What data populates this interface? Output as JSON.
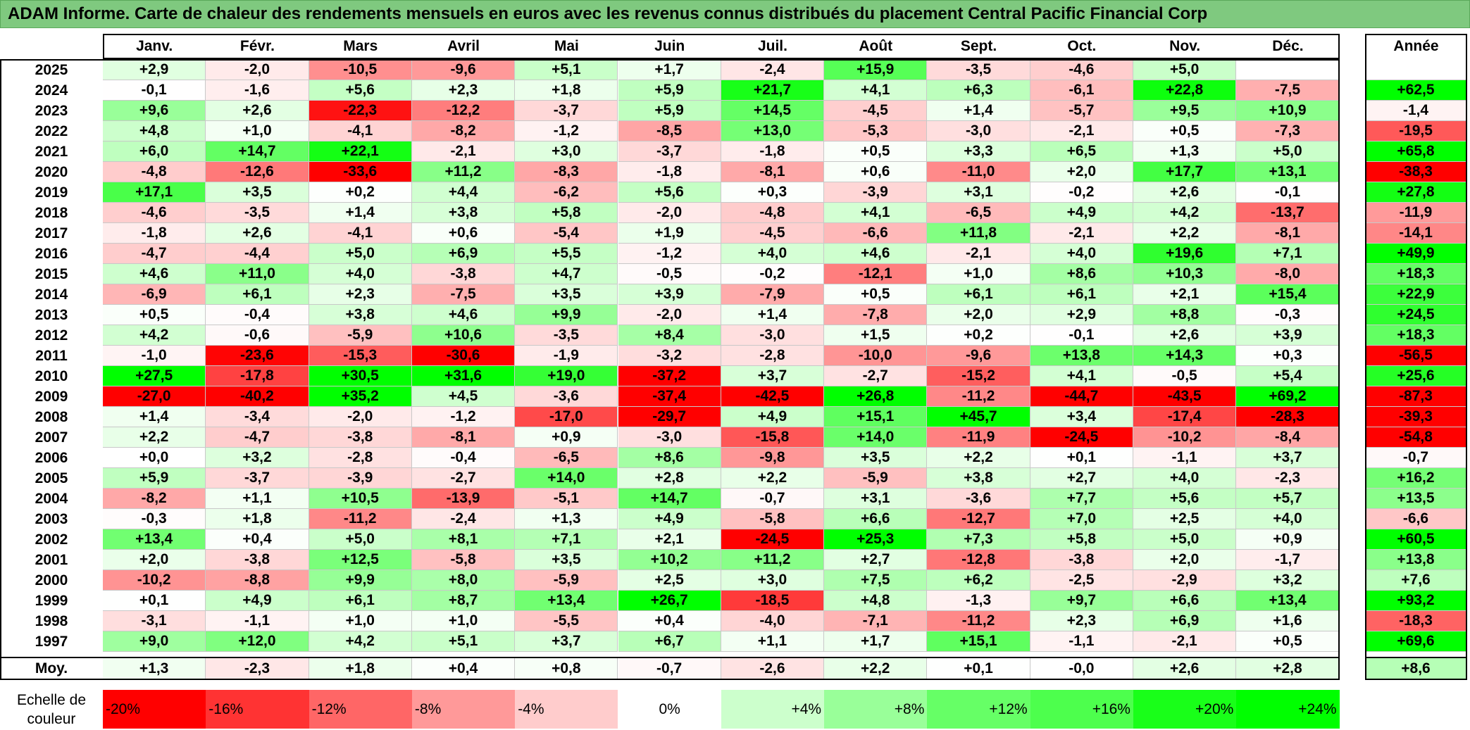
{
  "title": "ADAM Informe. Carte de chaleur des rendements mensuels en euros avec les revenus connus distribués du placement Central Pacific Financial Corp",
  "chart_data": {
    "type": "heatmap",
    "columns": [
      "Janv.",
      "Févr.",
      "Mars",
      "Avril",
      "Mai",
      "Juin",
      "Juil.",
      "Août",
      "Sept.",
      "Oct.",
      "Nov.",
      "Déc."
    ],
    "year_column": "Année",
    "average_label": "Moy.",
    "rows": [
      {
        "year": "2025",
        "values": [
          "+2,9",
          "-2,0",
          "-10,5",
          "-9,6",
          "+5,1",
          "+1,7",
          "-2,4",
          "+15,9",
          "-3,5",
          "-4,6",
          "+5,0",
          ""
        ],
        "annual": ""
      },
      {
        "year": "2024",
        "values": [
          "-0,1",
          "-1,6",
          "+5,6",
          "+2,3",
          "+1,8",
          "+5,9",
          "+21,7",
          "+4,1",
          "+6,3",
          "-6,1",
          "+22,8",
          "-7,5"
        ],
        "annual": "+62,5"
      },
      {
        "year": "2023",
        "values": [
          "+9,6",
          "+2,6",
          "-22,3",
          "-12,2",
          "-3,7",
          "+5,9",
          "+14,5",
          "-4,5",
          "+1,4",
          "-5,7",
          "+9,5",
          "+10,9"
        ],
        "annual": "-1,4"
      },
      {
        "year": "2022",
        "values": [
          "+4,8",
          "+1,0",
          "-4,1",
          "-8,2",
          "-1,2",
          "-8,5",
          "+13,0",
          "-5,3",
          "-3,0",
          "-2,1",
          "+0,5",
          "-7,3"
        ],
        "annual": "-19,5"
      },
      {
        "year": "2021",
        "values": [
          "+6,0",
          "+14,7",
          "+22,1",
          "-2,1",
          "+3,0",
          "-3,7",
          "-1,8",
          "+0,5",
          "+3,3",
          "+6,5",
          "+1,3",
          "+5,0"
        ],
        "annual": "+65,8"
      },
      {
        "year": "2020",
        "values": [
          "-4,8",
          "-12,6",
          "-33,6",
          "+11,2",
          "-8,3",
          "-1,8",
          "-8,1",
          "+0,6",
          "-11,0",
          "+2,0",
          "+17,7",
          "+13,1"
        ],
        "annual": "-38,3"
      },
      {
        "year": "2019",
        "values": [
          "+17,1",
          "+3,5",
          "+0,2",
          "+4,4",
          "-6,2",
          "+5,6",
          "+0,3",
          "-3,9",
          "+3,1",
          "-0,2",
          "+2,6",
          "-0,1"
        ],
        "annual": "+27,8"
      },
      {
        "year": "2018",
        "values": [
          "-4,6",
          "-3,5",
          "+1,4",
          "+3,8",
          "+5,8",
          "-2,0",
          "-4,8",
          "+4,1",
          "-6,5",
          "+4,9",
          "+4,2",
          "-13,7"
        ],
        "annual": "-11,9"
      },
      {
        "year": "2017",
        "values": [
          "-1,8",
          "+2,6",
          "-4,1",
          "+0,6",
          "-5,4",
          "+1,9",
          "-4,5",
          "-6,6",
          "+11,8",
          "-2,1",
          "+2,2",
          "-8,1"
        ],
        "annual": "-14,1"
      },
      {
        "year": "2016",
        "values": [
          "-4,7",
          "-4,4",
          "+5,0",
          "+6,9",
          "+5,5",
          "-1,2",
          "+4,0",
          "+4,6",
          "-2,1",
          "+4,0",
          "+19,6",
          "+7,1"
        ],
        "annual": "+49,9"
      },
      {
        "year": "2015",
        "values": [
          "+4,6",
          "+11,0",
          "+4,0",
          "-3,8",
          "+4,7",
          "-0,5",
          "-0,2",
          "-12,1",
          "+1,0",
          "+8,6",
          "+10,3",
          "-8,0"
        ],
        "annual": "+18,3"
      },
      {
        "year": "2014",
        "values": [
          "-6,9",
          "+6,1",
          "+2,3",
          "-7,5",
          "+3,5",
          "+3,9",
          "-7,9",
          "+0,5",
          "+6,1",
          "+6,1",
          "+2,1",
          "+15,4"
        ],
        "annual": "+22,9"
      },
      {
        "year": "2013",
        "values": [
          "+0,5",
          "-0,4",
          "+3,8",
          "+4,6",
          "+9,9",
          "-2,0",
          "+1,4",
          "-7,8",
          "+2,0",
          "+2,9",
          "+8,8",
          "-0,3"
        ],
        "annual": "+24,5"
      },
      {
        "year": "2012",
        "values": [
          "+4,2",
          "-0,6",
          "-5,9",
          "+10,6",
          "-3,5",
          "+8,4",
          "-3,0",
          "+1,5",
          "+0,2",
          "-0,1",
          "+2,6",
          "+3,9"
        ],
        "annual": "+18,3"
      },
      {
        "year": "2011",
        "values": [
          "-1,0",
          "-23,6",
          "-15,3",
          "-30,6",
          "-1,9",
          "-3,2",
          "-2,8",
          "-10,0",
          "-9,6",
          "+13,8",
          "+14,3",
          "+0,3"
        ],
        "annual": "-56,5"
      },
      {
        "year": "2010",
        "values": [
          "+27,5",
          "-17,8",
          "+30,5",
          "+31,6",
          "+19,0",
          "-37,2",
          "+3,7",
          "-2,7",
          "-15,2",
          "+4,1",
          "-0,5",
          "+5,4"
        ],
        "annual": "+25,6"
      },
      {
        "year": "2009",
        "values": [
          "-27,0",
          "-40,2",
          "+35,2",
          "+4,5",
          "-3,6",
          "-37,4",
          "-42,5",
          "+26,8",
          "-11,2",
          "-44,7",
          "-43,5",
          "+69,2"
        ],
        "annual": "-87,3"
      },
      {
        "year": "2008",
        "values": [
          "+1,4",
          "-3,4",
          "-2,0",
          "-1,2",
          "-17,0",
          "-29,7",
          "+4,9",
          "+15,1",
          "+45,7",
          "+3,4",
          "-17,4",
          "-28,3"
        ],
        "annual": "-39,3"
      },
      {
        "year": "2007",
        "values": [
          "+2,2",
          "-4,7",
          "-3,8",
          "-8,1",
          "+0,9",
          "-3,0",
          "-15,8",
          "+14,0",
          "-11,9",
          "-24,5",
          "-10,2",
          "-8,4"
        ],
        "annual": "-54,8"
      },
      {
        "year": "2006",
        "values": [
          "+0,0",
          "+3,2",
          "-2,8",
          "-0,4",
          "-6,5",
          "+8,6",
          "-9,8",
          "+3,5",
          "+2,2",
          "+0,1",
          "-1,1",
          "+3,7"
        ],
        "annual": "-0,7"
      },
      {
        "year": "2005",
        "values": [
          "+5,9",
          "-3,7",
          "-3,9",
          "-2,7",
          "+14,0",
          "+2,8",
          "+2,2",
          "-5,9",
          "+3,8",
          "+2,7",
          "+4,0",
          "-2,3"
        ],
        "annual": "+16,2"
      },
      {
        "year": "2004",
        "values": [
          "-8,2",
          "+1,1",
          "+10,5",
          "-13,9",
          "-5,1",
          "+14,7",
          "-0,7",
          "+3,1",
          "-3,6",
          "+7,7",
          "+5,6",
          "+5,7"
        ],
        "annual": "+13,5"
      },
      {
        "year": "2003",
        "values": [
          "-0,3",
          "+1,8",
          "-11,2",
          "-2,4",
          "+1,3",
          "+4,9",
          "-5,8",
          "+6,6",
          "-12,7",
          "+7,0",
          "+2,5",
          "+4,0"
        ],
        "annual": "-6,6"
      },
      {
        "year": "2002",
        "values": [
          "+13,4",
          "+0,4",
          "+5,0",
          "+8,1",
          "+7,1",
          "+2,1",
          "-24,5",
          "+25,3",
          "+7,3",
          "+5,8",
          "+5,0",
          "+0,9"
        ],
        "annual": "+60,5"
      },
      {
        "year": "2001",
        "values": [
          "+2,0",
          "-3,8",
          "+12,5",
          "-5,8",
          "+3,5",
          "+10,2",
          "+11,2",
          "+2,7",
          "-12,8",
          "-3,8",
          "+2,0",
          "-1,7"
        ],
        "annual": "+13,8"
      },
      {
        "year": "2000",
        "values": [
          "-10,2",
          "-8,8",
          "+9,9",
          "+8,0",
          "-5,9",
          "+2,5",
          "+3,0",
          "+7,5",
          "+6,2",
          "-2,5",
          "-2,9",
          "+3,2"
        ],
        "annual": "+7,6"
      },
      {
        "year": "1999",
        "values": [
          "+0,1",
          "+4,9",
          "+6,1",
          "+8,7",
          "+13,4",
          "+26,7",
          "-18,5",
          "+4,8",
          "-1,3",
          "+9,7",
          "+6,6",
          "+13,4"
        ],
        "annual": "+93,2"
      },
      {
        "year": "1998",
        "values": [
          "-3,1",
          "-1,1",
          "+1,0",
          "+1,0",
          "-5,5",
          "+0,4",
          "-4,0",
          "-7,1",
          "-11,2",
          "+2,3",
          "+6,9",
          "+1,6"
        ],
        "annual": "-18,3"
      },
      {
        "year": "1997",
        "values": [
          "+9,0",
          "+12,0",
          "+4,2",
          "+5,1",
          "+3,7",
          "+6,7",
          "+1,1",
          "+1,7",
          "+15,1",
          "-1,1",
          "-2,1",
          "+0,5"
        ],
        "annual": "+69,6"
      }
    ],
    "average": {
      "values": [
        "+1,3",
        "-2,3",
        "+1,8",
        "+0,4",
        "+0,8",
        "-0,7",
        "-2,6",
        "+2,2",
        "+0,1",
        "-0,0",
        "+2,6",
        "+2,8"
      ],
      "annual": "+8,6"
    },
    "scale": {
      "label_line1": "Echelle de",
      "label_line2": "couleur",
      "stops": [
        {
          "label": "-20%",
          "value": -20,
          "color": "#ff0000"
        },
        {
          "label": "-16%",
          "value": -16,
          "color": "#ff3333"
        },
        {
          "label": "-12%",
          "value": -12,
          "color": "#ff6666"
        },
        {
          "label": "-8%",
          "value": -8,
          "color": "#ff9999"
        },
        {
          "label": "-4%",
          "value": -4,
          "color": "#ffcccc"
        },
        {
          "label": "0%",
          "value": 0,
          "color": "#ffffff"
        },
        {
          "label": "+4%",
          "value": 4,
          "color": "#ccffcc"
        },
        {
          "label": "+8%",
          "value": 8,
          "color": "#99ff99"
        },
        {
          "label": "+12%",
          "value": 12,
          "color": "#66ff66"
        },
        {
          "label": "+16%",
          "value": 16,
          "color": "#4dff4d"
        },
        {
          "label": "+20%",
          "value": 20,
          "color": "#19ff19"
        },
        {
          "label": "+24%",
          "value": 24,
          "color": "#00ff00"
        }
      ]
    }
  }
}
